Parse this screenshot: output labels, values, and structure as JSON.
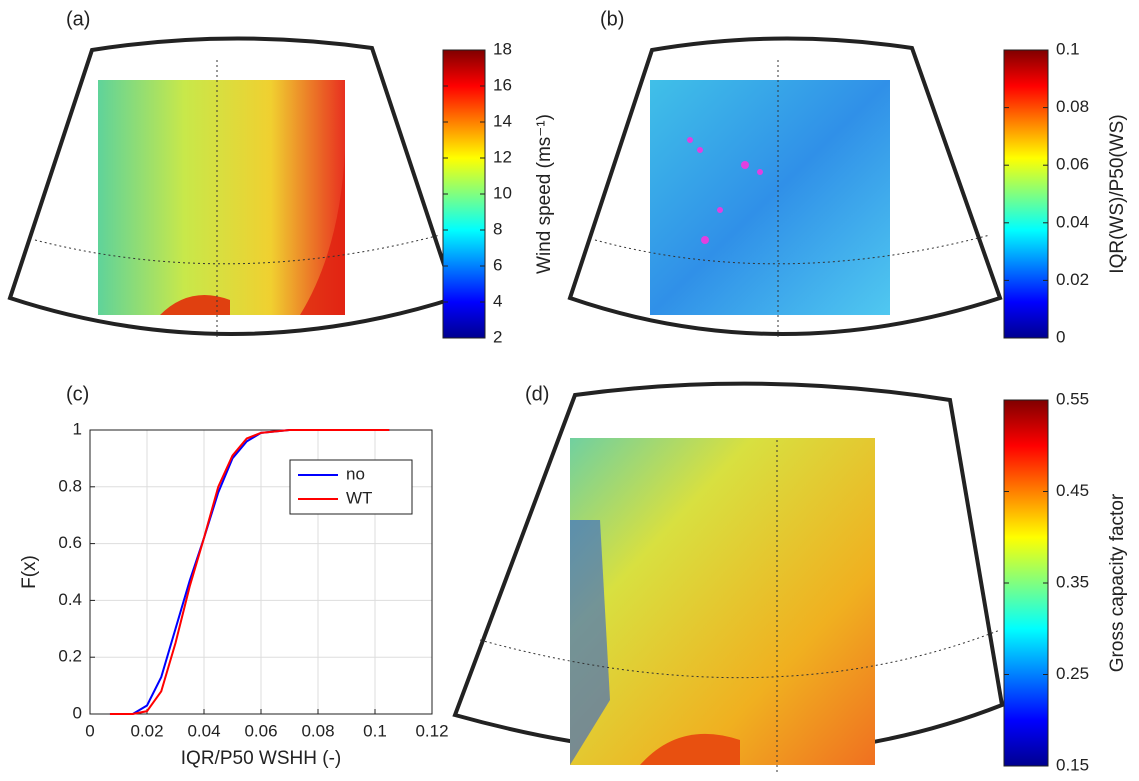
{
  "chart_data": [
    {
      "type": "colorbar",
      "panel_label": "(a)",
      "label": "Wind speed (ms⁻¹)",
      "colormap": "jet",
      "ylim": [
        2,
        18
      ],
      "yticks": [
        2,
        4,
        6,
        8,
        10,
        12,
        14,
        16,
        18
      ]
    },
    {
      "type": "colorbar",
      "panel_label": "(b)",
      "label": "IQR(WS)/P50(WS)",
      "colormap": "jet",
      "ylim": [
        0,
        0.1
      ],
      "yticks": [
        0,
        0.02,
        0.04,
        0.06,
        0.08,
        0.1
      ]
    },
    {
      "type": "line",
      "panel_label": "(c)",
      "x_label": "IQR/P50 WSHH (-)",
      "y_label": "F(x)",
      "xlim": [
        0,
        0.12
      ],
      "ylim": [
        0,
        1
      ],
      "xticks": [
        0,
        0.02,
        0.04,
        0.06,
        0.08,
        0.1,
        0.12
      ],
      "yticks": [
        0,
        0.2,
        0.4,
        0.6,
        0.8,
        1
      ],
      "grid": true,
      "legend": "upper right",
      "x": [
        0.007,
        0.015,
        0.02,
        0.025,
        0.03,
        0.035,
        0.04,
        0.045,
        0.05,
        0.055,
        0.06,
        0.07,
        0.08,
        0.1,
        0.105
      ],
      "series": [
        {
          "name": "no",
          "color": "#0000ff",
          "values": [
            0,
            0,
            0.03,
            0.13,
            0.3,
            0.47,
            0.62,
            0.78,
            0.9,
            0.96,
            0.99,
            1,
            1,
            1,
            1
          ]
        },
        {
          "name": "WT",
          "color": "#ff0000",
          "values": [
            0,
            0,
            0.01,
            0.08,
            0.25,
            0.45,
            0.62,
            0.8,
            0.91,
            0.97,
            0.99,
            1,
            1,
            1,
            1
          ]
        }
      ]
    },
    {
      "type": "colorbar",
      "panel_label": "(d)",
      "label": "Gross capacity factor",
      "colormap": "jet",
      "ylim": [
        0.15,
        0.55
      ],
      "yticks": [
        0.15,
        0.25,
        0.35,
        0.45,
        0.55
      ]
    }
  ]
}
